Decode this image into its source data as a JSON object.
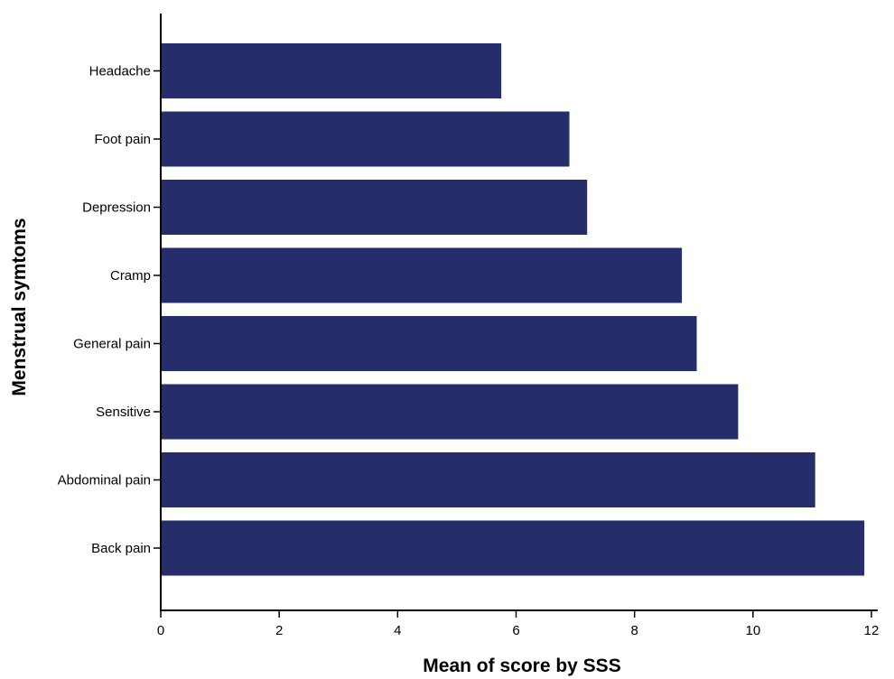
{
  "chart_data": {
    "type": "bar",
    "orientation": "horizontal",
    "categories": [
      "Headache",
      "Foot pain",
      "Depression",
      "Cramp",
      "General pain",
      "Sensitive",
      "Abdominal pain",
      "Back pain"
    ],
    "values": [
      5.75,
      6.9,
      7.2,
      8.8,
      9.05,
      9.75,
      11.05,
      11.88
    ],
    "xlabel": "Mean of score by SSS",
    "ylabel": "Menstrual symtoms",
    "xlim": [
      0,
      12
    ],
    "xticks": [
      "0",
      "2",
      "4",
      "6",
      "8",
      "10",
      "12"
    ],
    "bar_color": "#262d6b",
    "grid": false
  }
}
